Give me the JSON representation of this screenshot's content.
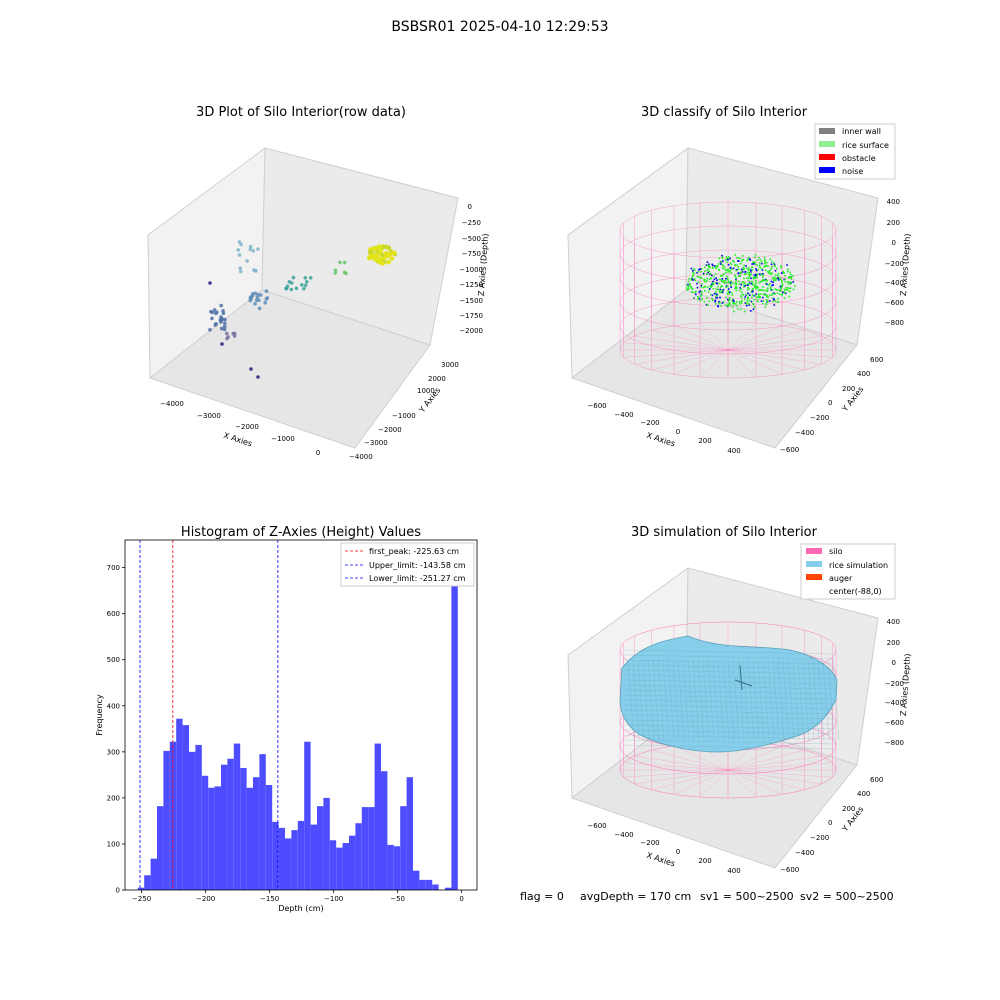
{
  "figure": {
    "title": "BSBSR01 2025-04-10 12:29:53",
    "footer": {
      "flag": "flag = 0",
      "avg_depth": "avgDepth = 170 cm",
      "sv1": "sv1 = 500~2500",
      "sv2": "sv2 = 500~2500"
    }
  },
  "colors": {
    "histogram_bar": "#4d4dff",
    "first_peak_line": "#ff0000",
    "limit_line": "#0000ff",
    "silo": "#ff69b4",
    "rice_simulation": "#87ceeb",
    "auger": "#ff4500",
    "inner_wall": "#808080",
    "rice_surface": "#90ee90",
    "obstacle": "#ff0000",
    "noise": "#0000ff"
  },
  "chart_data": [
    {
      "type": "scatter",
      "title": "3D Plot of Silo Interior(row data)",
      "xlabel": "X Axies",
      "ylabel": "Y Axies",
      "zlabel": "Z Axies (Depth)",
      "x_ticks": [
        "−4000",
        "−3000",
        "−2000",
        "−1000",
        "0"
      ],
      "y_ticks": [
        "3000",
        "2000",
        "1000",
        "−1000",
        "−2000",
        "−3000",
        "−4000"
      ],
      "z_ticks": [
        "0",
        "−250",
        "−500",
        "−750",
        "−1000",
        "−1250",
        "−1500",
        "−1750",
        "−2000"
      ]
    },
    {
      "type": "scatter",
      "title": "3D classify of Silo Interior",
      "xlabel": "X Axies",
      "ylabel": "Y Axies",
      "zlabel": "Z Axies (Depth)",
      "x_ticks": [
        "−600",
        "−400",
        "−200",
        "0",
        "200",
        "400"
      ],
      "y_ticks": [
        "600",
        "400",
        "200",
        "0",
        "−200",
        "−400",
        "−600"
      ],
      "z_ticks": [
        "400",
        "200",
        "0",
        "−200",
        "−400",
        "−600",
        "−800"
      ],
      "legend": [
        "inner wall",
        "rice surface",
        "obstacle",
        "noise"
      ],
      "legend_position": "top-right"
    },
    {
      "type": "bar",
      "title": "Histogram of Z-Axies (Height) Values",
      "xlabel": "Depth (cm)",
      "ylabel": "Frequency",
      "xlim": [
        -263,
        12
      ],
      "ylim": [
        0,
        760
      ],
      "x_ticks": [
        -250,
        -200,
        -150,
        -100,
        -50,
        0
      ],
      "y_ticks": [
        0,
        100,
        200,
        300,
        400,
        500,
        600,
        700
      ],
      "bin_start": -253,
      "bin_width": 5,
      "values": [
        5,
        32,
        68,
        182,
        302,
        322,
        372,
        358,
        300,
        315,
        248,
        222,
        225,
        272,
        285,
        318,
        265,
        222,
        245,
        295,
        228,
        148,
        135,
        112,
        130,
        150,
        322,
        142,
        182,
        200,
        108,
        92,
        102,
        118,
        145,
        180,
        180,
        318,
        258,
        98,
        95,
        182,
        245,
        42,
        22,
        22,
        12,
        0,
        5,
        718
      ],
      "reference_lines": [
        {
          "label": "first_peak: -225.63 cm",
          "x": -225.63,
          "style": "red-dashed"
        },
        {
          "label": "Upper_limit: -143.58 cm",
          "x": -143.58,
          "style": "blue-dashed"
        },
        {
          "label": "Lower_limit: -251.27 cm",
          "x": -251.27,
          "style": "blue-dashed"
        }
      ],
      "legend_position": "top-right"
    },
    {
      "type": "area",
      "title": "3D simulation of Silo Interior",
      "xlabel": "X Axies",
      "ylabel": "Y Axies",
      "zlabel": "Z Axies (Depth)",
      "x_ticks": [
        "−600",
        "−400",
        "−200",
        "0",
        "200",
        "400"
      ],
      "y_ticks": [
        "600",
        "400",
        "200",
        "0",
        "−200",
        "−400",
        "−600"
      ],
      "z_ticks": [
        "400",
        "200",
        "0",
        "−200",
        "−400",
        "−600",
        "−800"
      ],
      "legend": [
        "silo",
        "rice simulation",
        "auger",
        "center(-88,0)"
      ],
      "legend_position": "top-right"
    }
  ]
}
